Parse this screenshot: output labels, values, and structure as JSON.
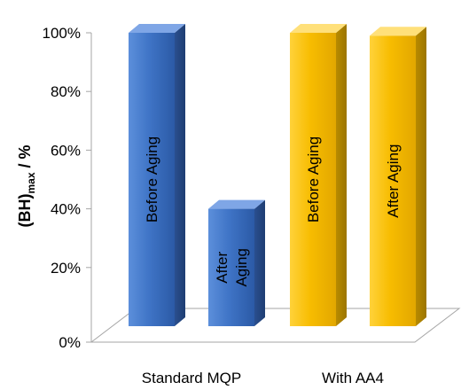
{
  "chart_data": {
    "type": "bar",
    "style": "3d-column",
    "ylabel": {
      "main": "(BH)",
      "subscript": "max",
      "suffix": " / %"
    },
    "ylim": [
      0,
      100
    ],
    "yticks": [
      "0%",
      "20%",
      "40%",
      "60%",
      "80%",
      "100%"
    ],
    "yticks_values": [
      0,
      20,
      40,
      60,
      80,
      100
    ],
    "grid": false,
    "groups": [
      {
        "label": "Standard MQP",
        "color": "#3D72C4",
        "bars": [
          {
            "label_lines": [
              "Before Aging"
            ],
            "value": 100
          },
          {
            "label_lines": [
              "After",
              "Aging"
            ],
            "value": 40
          }
        ]
      },
      {
        "label": "With AA4",
        "color": "#F5B800",
        "bars": [
          {
            "label_lines": [
              "Before Aging"
            ],
            "value": 100
          },
          {
            "label_lines": [
              "After Aging"
            ],
            "value": 99
          }
        ]
      }
    ]
  }
}
